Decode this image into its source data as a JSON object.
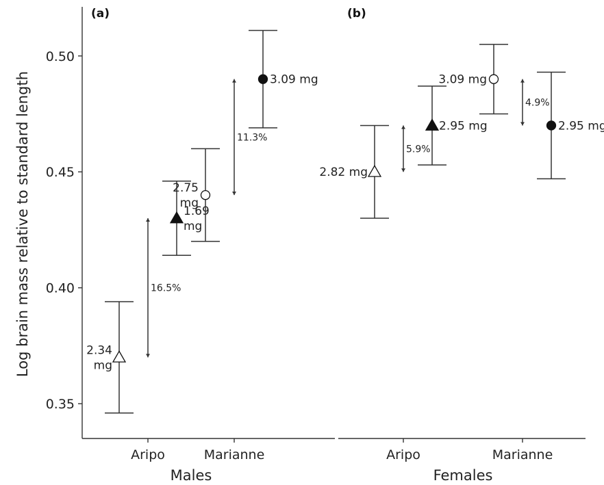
{
  "chart_data": {
    "type": "scatter",
    "ylabel": "Log brain mass relative to standard length",
    "ylim": [
      0.335,
      0.52
    ],
    "yticks": [
      0.35,
      0.4,
      0.45,
      0.5
    ],
    "ytick_labels": [
      "0.35",
      "0.40",
      "0.45",
      "0.50"
    ],
    "panels": [
      {
        "label": "(a)",
        "xlabel": "Males",
        "categories": [
          "Aripo",
          "Marianne"
        ],
        "points": [
          {
            "category": "Aripo",
            "pos": -1,
            "marker": "triangle",
            "filled": false,
            "y": 0.37,
            "lower": 0.346,
            "upper": 0.394,
            "label": [
              "2.34",
              "mg"
            ],
            "label_side": "left"
          },
          {
            "category": "Aripo",
            "pos": 1,
            "marker": "triangle",
            "filled": true,
            "y": 0.43,
            "lower": 0.414,
            "upper": 0.446,
            "label": [
              "1.69",
              "mg"
            ],
            "label_side": "right"
          },
          {
            "category": "Marianne",
            "pos": -1,
            "marker": "circle",
            "filled": false,
            "y": 0.44,
            "lower": 0.42,
            "upper": 0.46,
            "label": [
              "2.75",
              "mg"
            ],
            "label_side": "left"
          },
          {
            "category": "Marianne",
            "pos": 1,
            "marker": "circle",
            "filled": true,
            "y": 0.49,
            "lower": 0.469,
            "upper": 0.511,
            "label": [
              "3.09 mg"
            ],
            "label_side": "right"
          }
        ],
        "differences": [
          {
            "category": "Aripo",
            "from": 0.37,
            "to": 0.43,
            "label": "16.5%"
          },
          {
            "category": "Marianne",
            "from": 0.44,
            "to": 0.49,
            "label": "11.3%"
          }
        ]
      },
      {
        "label": "(b)",
        "xlabel": "Females",
        "categories": [
          "Aripo",
          "Marianne"
        ],
        "points": [
          {
            "category": "Aripo",
            "pos": -1,
            "marker": "triangle",
            "filled": false,
            "y": 0.45,
            "lower": 0.43,
            "upper": 0.47,
            "label": [
              "2.82 mg"
            ],
            "label_side": "left"
          },
          {
            "category": "Aripo",
            "pos": 1,
            "marker": "triangle",
            "filled": true,
            "y": 0.47,
            "lower": 0.453,
            "upper": 0.487,
            "label": [
              "2.95 mg"
            ],
            "label_side": "right"
          },
          {
            "category": "Marianne",
            "pos": -1,
            "marker": "circle",
            "filled": false,
            "y": 0.49,
            "lower": 0.475,
            "upper": 0.505,
            "label": [
              "3.09 mg"
            ],
            "label_side": "left"
          },
          {
            "category": "Marianne",
            "pos": 1,
            "marker": "circle",
            "filled": true,
            "y": 0.47,
            "lower": 0.447,
            "upper": 0.493,
            "label": [
              "2.95 mg"
            ],
            "label_side": "right"
          }
        ],
        "differences": [
          {
            "category": "Aripo",
            "from": 0.45,
            "to": 0.47,
            "label": "5.9%"
          },
          {
            "category": "Marianne",
            "from": 0.47,
            "to": 0.49,
            "label": "4.9%"
          }
        ]
      }
    ]
  }
}
